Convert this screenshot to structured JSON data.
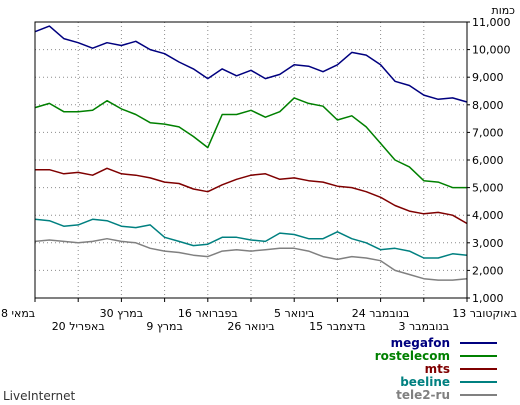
{
  "chart_data": {
    "type": "line",
    "ylabel": "כמות",
    "ylim": [
      1000,
      11000
    ],
    "yticks": [
      "1,000",
      "2,000",
      "3,000",
      "4,000",
      "5,000",
      "6,000",
      "7,000",
      "8,000",
      "9,000",
      "10,000",
      "11,000"
    ],
    "x_labels_row1": [
      "13 באוקטובר",
      "24 בנובמבר",
      "5 בינואר",
      "16 בפברואר",
      "30 במרץ",
      "8 במאי"
    ],
    "x_labels_row2": [
      "3 בנובמבר",
      "15 בדצמבר",
      "26 בינואר",
      "9 במרץ",
      "20 באפריל"
    ],
    "grid": true,
    "legend_position": "bottom-right",
    "series": [
      {
        "name": "megafon",
        "color": "#00007f",
        "values": [
          8100,
          8250,
          8200,
          8350,
          8700,
          8850,
          9450,
          9800,
          9900,
          9450,
          9200,
          9400,
          9450,
          9100,
          8950,
          9250,
          9050,
          9300,
          8950,
          9300,
          9550,
          9850,
          10000,
          10300,
          10150,
          10250,
          10050,
          10250,
          10400,
          10850,
          10650
        ]
      },
      {
        "name": "rostelecom",
        "color": "#008000",
        "values": [
          5000,
          5000,
          5200,
          5250,
          5750,
          6000,
          6600,
          7200,
          7600,
          7450,
          7950,
          8050,
          8250,
          7750,
          7550,
          7800,
          7650,
          7650,
          6450,
          6850,
          7200,
          7300,
          7350,
          7650,
          7850,
          8150,
          7800,
          7750,
          7750,
          8050,
          7900
        ]
      },
      {
        "name": "mts",
        "color": "#7f0000",
        "values": [
          3700,
          4000,
          4100,
          4050,
          4150,
          4350,
          4650,
          4850,
          5000,
          5050,
          5200,
          5250,
          5350,
          5300,
          5500,
          5450,
          5300,
          5100,
          4850,
          4950,
          5150,
          5200,
          5350,
          5450,
          5500,
          5700,
          5450,
          5550,
          5500,
          5650,
          5650
        ]
      },
      {
        "name": "beeline",
        "color": "#008080",
        "values": [
          2550,
          2600,
          2450,
          2450,
          2700,
          2800,
          2750,
          3000,
          3150,
          3400,
          3150,
          3150,
          3300,
          3350,
          3050,
          3100,
          3200,
          3200,
          2950,
          2900,
          3050,
          3200,
          3650,
          3550,
          3600,
          3800,
          3850,
          3650,
          3600,
          3800,
          3850
        ]
      },
      {
        "name": "tele2-ru",
        "color": "#808080",
        "values": [
          1700,
          1650,
          1650,
          1700,
          1850,
          2000,
          2350,
          2450,
          2500,
          2400,
          2500,
          2700,
          2800,
          2800,
          2750,
          2700,
          2750,
          2700,
          2500,
          2550,
          2650,
          2700,
          2800,
          3000,
          3050,
          3150,
          3050,
          3000,
          3050,
          3100,
          3050
        ]
      }
    ]
  },
  "footer": {
    "brand": "LiveInternet"
  }
}
